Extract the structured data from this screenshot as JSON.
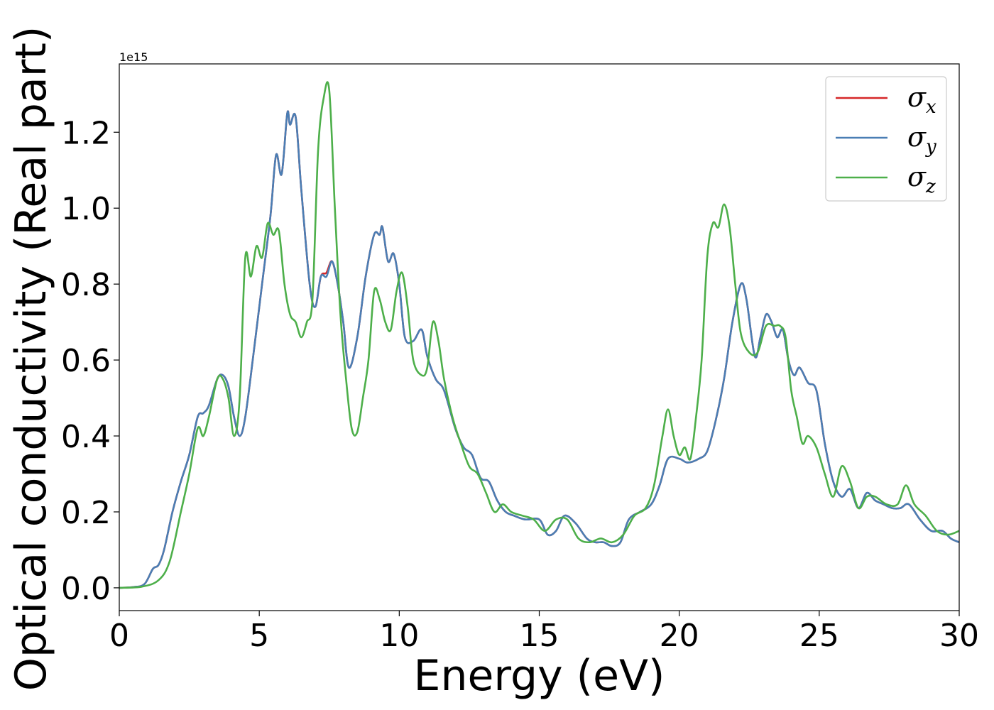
{
  "chart_data": {
    "type": "line",
    "xlabel": "Energy (eV)",
    "ylabel": "Optical conductivity (Real part)",
    "offset_text": "1e15",
    "xlim": [
      0,
      30
    ],
    "ylim": [
      -0.06,
      1.38
    ],
    "x_ticks": [
      0,
      5,
      10,
      15,
      20,
      25,
      30
    ],
    "y_ticks": [
      0.0,
      0.2,
      0.4,
      0.6,
      0.8,
      1.0,
      1.2
    ],
    "x_tick_labels": [
      "0",
      "5",
      "10",
      "15",
      "20",
      "25",
      "30"
    ],
    "y_tick_labels": [
      "0.0",
      "0.2",
      "0.4",
      "0.6",
      "0.8",
      "1.0",
      "1.2"
    ],
    "grid": false,
    "legend_position": "top-right",
    "series": [
      {
        "name": "σx",
        "legend_base": "σ",
        "legend_sub": "x",
        "color": "#d62728",
        "x": [
          0,
          0.5,
          0.9,
          1.2,
          1.4,
          1.6,
          1.9,
          2.2,
          2.5,
          2.8,
          3.0,
          3.2,
          3.5,
          3.7,
          3.9,
          4.1,
          4.3,
          4.5,
          4.8,
          5.1,
          5.4,
          5.6,
          5.8,
          6.0,
          6.1,
          6.3,
          6.5,
          6.8,
          7.0,
          7.2,
          7.4,
          7.6,
          7.8,
          8.0,
          8.2,
          8.5,
          8.8,
          9.1,
          9.3,
          9.4,
          9.6,
          9.8,
          10.0,
          10.2,
          10.5,
          10.8,
          11.0,
          11.3,
          11.6,
          12.0,
          12.3,
          12.6,
          12.9,
          13.2,
          13.5,
          13.8,
          14.1,
          14.5,
          15.0,
          15.3,
          15.6,
          15.9,
          16.3,
          16.7,
          17.0,
          17.3,
          17.6,
          17.9,
          18.2,
          18.6,
          19.0,
          19.3,
          19.6,
          20.0,
          20.3,
          20.7,
          21.0,
          21.3,
          21.6,
          21.9,
          22.2,
          22.4,
          22.7,
          22.9,
          23.1,
          23.3,
          23.5,
          23.7,
          23.9,
          24.1,
          24.3,
          24.6,
          24.9,
          25.2,
          25.5,
          25.8,
          26.1,
          26.4,
          26.7,
          27.0,
          27.3,
          27.6,
          27.9,
          28.2,
          28.6,
          29.0,
          29.4,
          29.7,
          30.0
        ],
        "y": [
          0,
          0.002,
          0.01,
          0.05,
          0.06,
          0.1,
          0.2,
          0.28,
          0.35,
          0.45,
          0.46,
          0.48,
          0.55,
          0.56,
          0.53,
          0.45,
          0.4,
          0.45,
          0.62,
          0.8,
          0.98,
          1.14,
          1.09,
          1.25,
          1.22,
          1.24,
          1.05,
          0.8,
          0.74,
          0.82,
          0.83,
          0.86,
          0.8,
          0.7,
          0.58,
          0.66,
          0.82,
          0.93,
          0.93,
          0.95,
          0.86,
          0.88,
          0.8,
          0.66,
          0.65,
          0.68,
          0.61,
          0.55,
          0.52,
          0.42,
          0.37,
          0.35,
          0.29,
          0.28,
          0.23,
          0.2,
          0.19,
          0.18,
          0.18,
          0.14,
          0.15,
          0.19,
          0.17,
          0.13,
          0.12,
          0.12,
          0.11,
          0.12,
          0.18,
          0.2,
          0.22,
          0.27,
          0.34,
          0.34,
          0.33,
          0.34,
          0.36,
          0.44,
          0.55,
          0.7,
          0.8,
          0.76,
          0.61,
          0.66,
          0.72,
          0.7,
          0.66,
          0.68,
          0.6,
          0.56,
          0.58,
          0.54,
          0.52,
          0.38,
          0.28,
          0.24,
          0.26,
          0.21,
          0.25,
          0.23,
          0.22,
          0.21,
          0.21,
          0.22,
          0.18,
          0.15,
          0.15,
          0.13,
          0.12
        ]
      },
      {
        "name": "σy",
        "legend_base": "σ",
        "legend_sub": "y",
        "color": "#4a7eb4",
        "x": [
          0,
          0.5,
          0.9,
          1.2,
          1.4,
          1.6,
          1.9,
          2.2,
          2.5,
          2.8,
          3.0,
          3.2,
          3.5,
          3.7,
          3.9,
          4.1,
          4.3,
          4.5,
          4.8,
          5.1,
          5.4,
          5.6,
          5.8,
          6.0,
          6.1,
          6.3,
          6.5,
          6.8,
          7.0,
          7.2,
          7.4,
          7.6,
          7.8,
          8.0,
          8.2,
          8.5,
          8.8,
          9.1,
          9.3,
          9.4,
          9.6,
          9.8,
          10.0,
          10.2,
          10.5,
          10.8,
          11.0,
          11.3,
          11.6,
          12.0,
          12.3,
          12.6,
          12.9,
          13.2,
          13.5,
          13.8,
          14.1,
          14.5,
          15.0,
          15.3,
          15.6,
          15.9,
          16.3,
          16.7,
          17.0,
          17.3,
          17.6,
          17.9,
          18.2,
          18.6,
          19.0,
          19.3,
          19.6,
          20.0,
          20.3,
          20.7,
          21.0,
          21.3,
          21.6,
          21.9,
          22.2,
          22.4,
          22.7,
          22.9,
          23.1,
          23.3,
          23.5,
          23.7,
          23.9,
          24.1,
          24.3,
          24.6,
          24.9,
          25.2,
          25.5,
          25.8,
          26.1,
          26.4,
          26.7,
          27.0,
          27.3,
          27.6,
          27.9,
          28.2,
          28.6,
          29.0,
          29.4,
          29.7,
          30.0
        ],
        "y": [
          0,
          0.002,
          0.01,
          0.05,
          0.06,
          0.1,
          0.2,
          0.28,
          0.35,
          0.45,
          0.46,
          0.48,
          0.55,
          0.56,
          0.53,
          0.45,
          0.4,
          0.45,
          0.62,
          0.8,
          0.98,
          1.14,
          1.09,
          1.25,
          1.22,
          1.24,
          1.05,
          0.8,
          0.74,
          0.82,
          0.82,
          0.86,
          0.8,
          0.7,
          0.58,
          0.66,
          0.82,
          0.93,
          0.93,
          0.95,
          0.86,
          0.88,
          0.8,
          0.66,
          0.65,
          0.68,
          0.61,
          0.55,
          0.52,
          0.42,
          0.37,
          0.35,
          0.29,
          0.28,
          0.23,
          0.2,
          0.19,
          0.18,
          0.18,
          0.14,
          0.15,
          0.19,
          0.17,
          0.13,
          0.12,
          0.12,
          0.11,
          0.12,
          0.18,
          0.2,
          0.22,
          0.27,
          0.34,
          0.34,
          0.33,
          0.34,
          0.36,
          0.44,
          0.55,
          0.7,
          0.8,
          0.76,
          0.61,
          0.66,
          0.72,
          0.7,
          0.66,
          0.68,
          0.6,
          0.56,
          0.58,
          0.54,
          0.52,
          0.38,
          0.28,
          0.24,
          0.26,
          0.21,
          0.25,
          0.23,
          0.22,
          0.21,
          0.21,
          0.22,
          0.18,
          0.15,
          0.15,
          0.13,
          0.12
        ]
      },
      {
        "name": "σz",
        "legend_base": "σ",
        "legend_sub": "z",
        "color": "#4daf4a",
        "x": [
          0,
          0.8,
          1.4,
          1.8,
          2.2,
          2.5,
          2.8,
          3.0,
          3.2,
          3.5,
          3.7,
          3.9,
          4.1,
          4.3,
          4.5,
          4.7,
          4.9,
          5.1,
          5.3,
          5.5,
          5.7,
          5.9,
          6.1,
          6.3,
          6.5,
          6.7,
          6.9,
          7.1,
          7.3,
          7.5,
          7.7,
          7.9,
          8.1,
          8.3,
          8.5,
          8.7,
          8.9,
          9.1,
          9.3,
          9.5,
          9.7,
          9.9,
          10.1,
          10.3,
          10.5,
          10.8,
          11.0,
          11.2,
          11.4,
          11.6,
          11.9,
          12.2,
          12.5,
          12.8,
          13.1,
          13.4,
          13.7,
          14.0,
          14.4,
          14.8,
          15.2,
          15.6,
          16.0,
          16.4,
          16.8,
          17.2,
          17.6,
          18.0,
          18.4,
          18.8,
          19.1,
          19.4,
          19.6,
          19.8,
          20.0,
          20.2,
          20.4,
          20.6,
          20.8,
          21.0,
          21.2,
          21.4,
          21.6,
          21.8,
          22.0,
          22.2,
          22.5,
          22.8,
          23.1,
          23.4,
          23.6,
          23.8,
          24.0,
          24.2,
          24.4,
          24.6,
          24.9,
          25.2,
          25.5,
          25.8,
          26.1,
          26.4,
          26.7,
          27.0,
          27.4,
          27.8,
          28.1,
          28.4,
          28.8,
          29.2,
          29.6,
          30.0
        ],
        "y": [
          0,
          0.003,
          0.02,
          0.07,
          0.2,
          0.3,
          0.42,
          0.4,
          0.45,
          0.55,
          0.55,
          0.5,
          0.4,
          0.5,
          0.87,
          0.82,
          0.9,
          0.87,
          0.96,
          0.93,
          0.94,
          0.8,
          0.72,
          0.7,
          0.66,
          0.7,
          0.76,
          1.15,
          1.29,
          1.31,
          1.0,
          0.72,
          0.55,
          0.42,
          0.41,
          0.5,
          0.6,
          0.78,
          0.76,
          0.7,
          0.68,
          0.78,
          0.83,
          0.74,
          0.6,
          0.56,
          0.58,
          0.7,
          0.65,
          0.55,
          0.45,
          0.38,
          0.32,
          0.3,
          0.25,
          0.2,
          0.22,
          0.2,
          0.19,
          0.18,
          0.15,
          0.18,
          0.18,
          0.13,
          0.12,
          0.13,
          0.12,
          0.14,
          0.19,
          0.21,
          0.27,
          0.4,
          0.47,
          0.4,
          0.35,
          0.37,
          0.34,
          0.45,
          0.6,
          0.87,
          0.96,
          0.95,
          1.01,
          0.95,
          0.8,
          0.67,
          0.62,
          0.62,
          0.69,
          0.69,
          0.69,
          0.66,
          0.52,
          0.45,
          0.38,
          0.4,
          0.37,
          0.3,
          0.24,
          0.32,
          0.28,
          0.21,
          0.24,
          0.24,
          0.22,
          0.22,
          0.27,
          0.22,
          0.19,
          0.15,
          0.14,
          0.15
        ]
      }
    ]
  }
}
